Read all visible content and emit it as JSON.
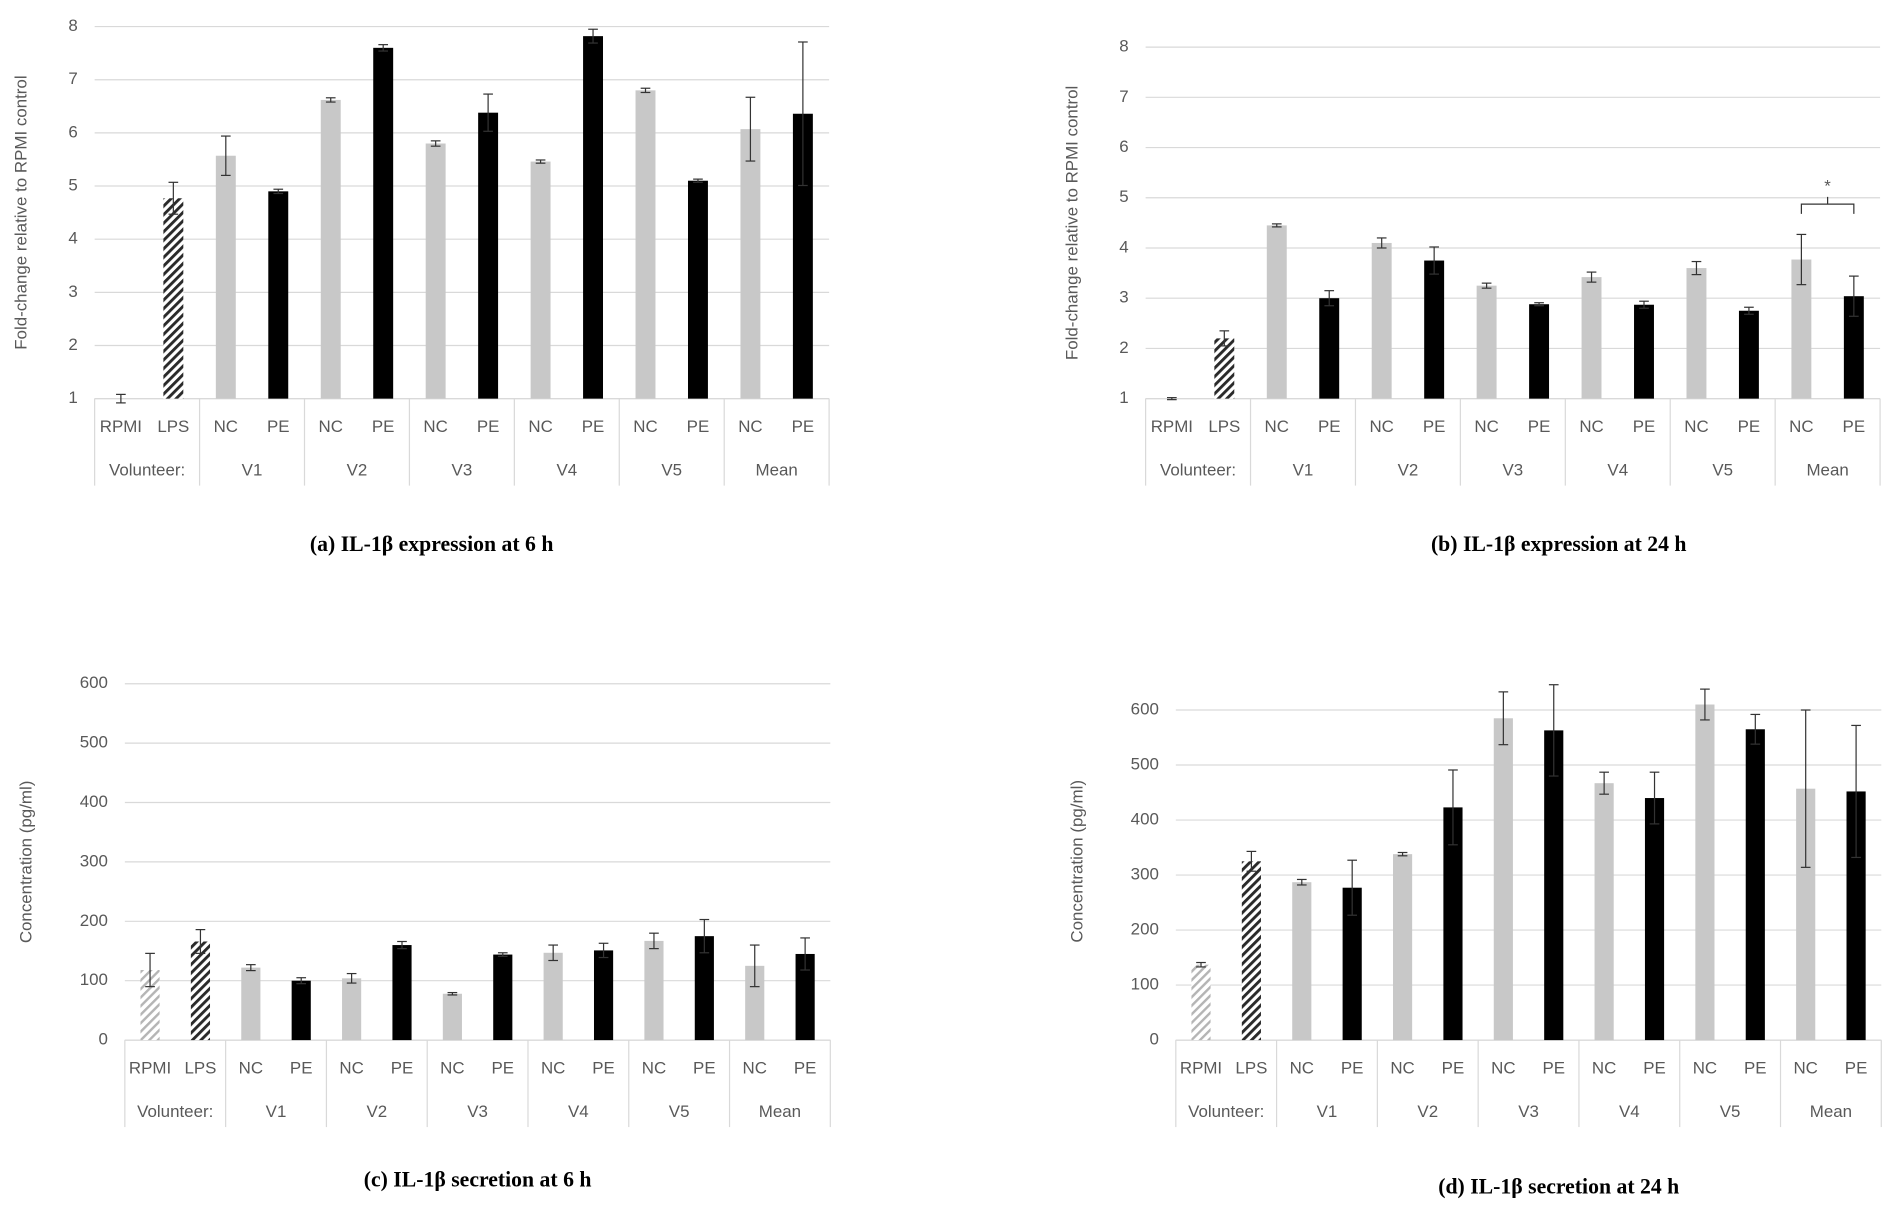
{
  "chart_data": [
    {
      "type": "bar",
      "title": "(a) IL-1β expression at 6 h",
      "ylabel": "Fold-change relative to RPMI control",
      "categories": [
        "RPMI",
        "LPS",
        "NC",
        "PE",
        "NC",
        "PE",
        "NC",
        "PE",
        "NC",
        "PE",
        "NC",
        "PE",
        "NC",
        "PE"
      ],
      "groups": [
        "Volunteer:",
        "V1",
        "V2",
        "V3",
        "V4",
        "V5",
        "Mean"
      ],
      "values": [
        1.0,
        4.77,
        5.57,
        4.9,
        6.62,
        7.6,
        5.8,
        6.38,
        5.46,
        7.82,
        6.8,
        5.1,
        6.07,
        6.36
      ],
      "errors": [
        0.08,
        0.3,
        0.37,
        0.04,
        0.04,
        0.06,
        0.05,
        0.35,
        0.03,
        0.13,
        0.04,
        0.03,
        0.6,
        1.35
      ],
      "bar_styles": [
        "hatch-light",
        "hatch-dark",
        "gray",
        "black",
        "gray",
        "black",
        "gray",
        "black",
        "gray",
        "black",
        "gray",
        "black",
        "gray",
        "black"
      ],
      "ylim": [
        1,
        8
      ],
      "yticks": [
        1,
        2,
        3,
        4,
        5,
        6,
        7,
        8
      ],
      "grid": true
    },
    {
      "type": "bar",
      "title": "(b) IL-1β expression at 24 h",
      "ylabel": "Fold-change relative to RPMI control",
      "categories": [
        "RPMI",
        "LPS",
        "NC",
        "PE",
        "NC",
        "PE",
        "NC",
        "PE",
        "NC",
        "PE",
        "NC",
        "PE",
        "NC",
        "PE"
      ],
      "groups": [
        "Volunteer:",
        "V1",
        "V2",
        "V3",
        "V4",
        "V5",
        "Mean"
      ],
      "values": [
        1.0,
        2.2,
        4.45,
        3.0,
        4.1,
        3.75,
        3.25,
        2.88,
        3.42,
        2.87,
        3.6,
        2.75,
        3.77,
        3.04
      ],
      "errors": [
        0.02,
        0.15,
        0.03,
        0.15,
        0.1,
        0.27,
        0.05,
        0.03,
        0.1,
        0.07,
        0.13,
        0.07,
        0.5,
        0.4
      ],
      "bar_styles": [
        "hatch-light",
        "hatch-dark",
        "gray",
        "black",
        "gray",
        "black",
        "gray",
        "black",
        "gray",
        "black",
        "gray",
        "black",
        "gray",
        "black"
      ],
      "ylim": [
        1,
        8
      ],
      "yticks": [
        1,
        2,
        3,
        4,
        5,
        6,
        7,
        8
      ],
      "grid": true,
      "annotation": "*"
    },
    {
      "type": "bar",
      "title": "(c) IL-1β secretion at 6 h",
      "ylabel": "Concentration (pg/ml)",
      "categories": [
        "RPMI",
        "LPS",
        "NC",
        "PE",
        "NC",
        "PE",
        "NC",
        "PE",
        "NC",
        "PE",
        "NC",
        "PE",
        "NC",
        "PE"
      ],
      "groups": [
        "Volunteer:",
        "V1",
        "V2",
        "V3",
        "V4",
        "V5",
        "Mean"
      ],
      "values": [
        118,
        166,
        122,
        100,
        104,
        160,
        78,
        144,
        147,
        151,
        167,
        175,
        125,
        145
      ],
      "errors": [
        28,
        20,
        5,
        5,
        8,
        6,
        2,
        3,
        13,
        12,
        13,
        28,
        35,
        27
      ],
      "bar_styles": [
        "hatch-light",
        "hatch-dark",
        "gray",
        "black",
        "gray",
        "black",
        "gray",
        "black",
        "gray",
        "black",
        "gray",
        "black",
        "gray",
        "black"
      ],
      "ylim": [
        0,
        600
      ],
      "yticks": [
        0,
        100,
        200,
        300,
        400,
        500,
        600
      ],
      "grid": true
    },
    {
      "type": "bar",
      "title": "(d) IL-1β secretion at 24 h",
      "ylabel": "Concentration (pg/ml)",
      "categories": [
        "RPMI",
        "LPS",
        "NC",
        "PE",
        "NC",
        "PE",
        "NC",
        "PE",
        "NC",
        "PE",
        "NC",
        "PE",
        "NC",
        "PE"
      ],
      "groups": [
        "Volunteer:",
        "V1",
        "V2",
        "V3",
        "V4",
        "V5",
        "Mean"
      ],
      "values": [
        137,
        325,
        287,
        277,
        338,
        423,
        585,
        563,
        467,
        440,
        610,
        565,
        457,
        452
      ],
      "errors": [
        4,
        18,
        5,
        50,
        3,
        68,
        48,
        83,
        20,
        47,
        28,
        27,
        143,
        120
      ],
      "bar_styles": [
        "hatch-light",
        "hatch-dark",
        "gray",
        "black",
        "gray",
        "black",
        "gray",
        "black",
        "gray",
        "black",
        "gray",
        "black",
        "gray",
        "black"
      ],
      "ylim": [
        0,
        650
      ],
      "yticks": [
        0,
        100,
        200,
        300,
        400,
        500,
        600
      ],
      "grid": true
    }
  ]
}
